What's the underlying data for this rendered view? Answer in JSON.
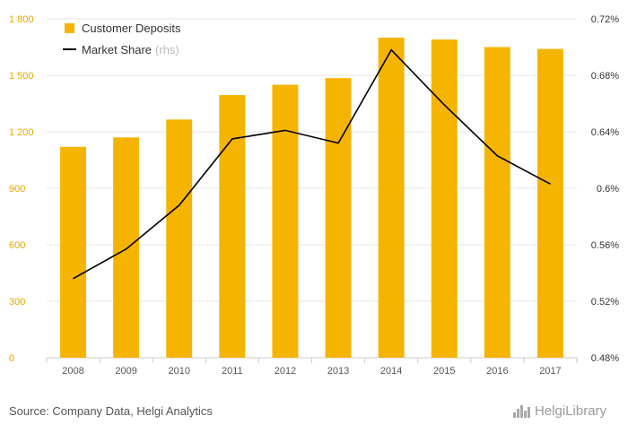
{
  "chart_data": {
    "type": "bar+line",
    "categories": [
      "2008",
      "2009",
      "2010",
      "2011",
      "2012",
      "2013",
      "2014",
      "2015",
      "2016",
      "2017"
    ],
    "series": [
      {
        "name": "Customer Deposits",
        "type": "bar",
        "axis": "left",
        "values": [
          1120,
          1170,
          1265,
          1395,
          1450,
          1485,
          1700,
          1690,
          1650,
          1640
        ]
      },
      {
        "name": "Market Share",
        "name_note": "(rhs)",
        "type": "line",
        "axis": "right",
        "values": [
          0.536,
          0.557,
          0.588,
          0.635,
          0.641,
          0.632,
          0.698,
          0.659,
          0.623,
          0.603
        ]
      }
    ],
    "y_left": {
      "min": 0,
      "max": 1800,
      "ticks": [
        0,
        300,
        600,
        900,
        1200,
        1500,
        1800
      ],
      "tick_labels": [
        "0",
        "300",
        "600",
        "900",
        "1 200",
        "1 500",
        "1 800"
      ]
    },
    "y_right": {
      "min": 0.48,
      "max": 0.72,
      "ticks": [
        0.48,
        0.52,
        0.56,
        0.6,
        0.64,
        0.68,
        0.72
      ],
      "tick_labels": [
        "0.48%",
        "0.52%",
        "0.56%",
        "0.6%",
        "0.64%",
        "0.68%",
        "0.72%"
      ]
    },
    "legend_position": "top-left",
    "grid": "horizontal",
    "colors": {
      "bar": "#f5b400",
      "line": "#000000",
      "grid": "#e6e6e6",
      "left_ticks": "#e8a600"
    }
  },
  "footer": {
    "source": "Source: Company Data, Helgi Analytics"
  },
  "logo": {
    "text": "HelgiLibrary"
  }
}
